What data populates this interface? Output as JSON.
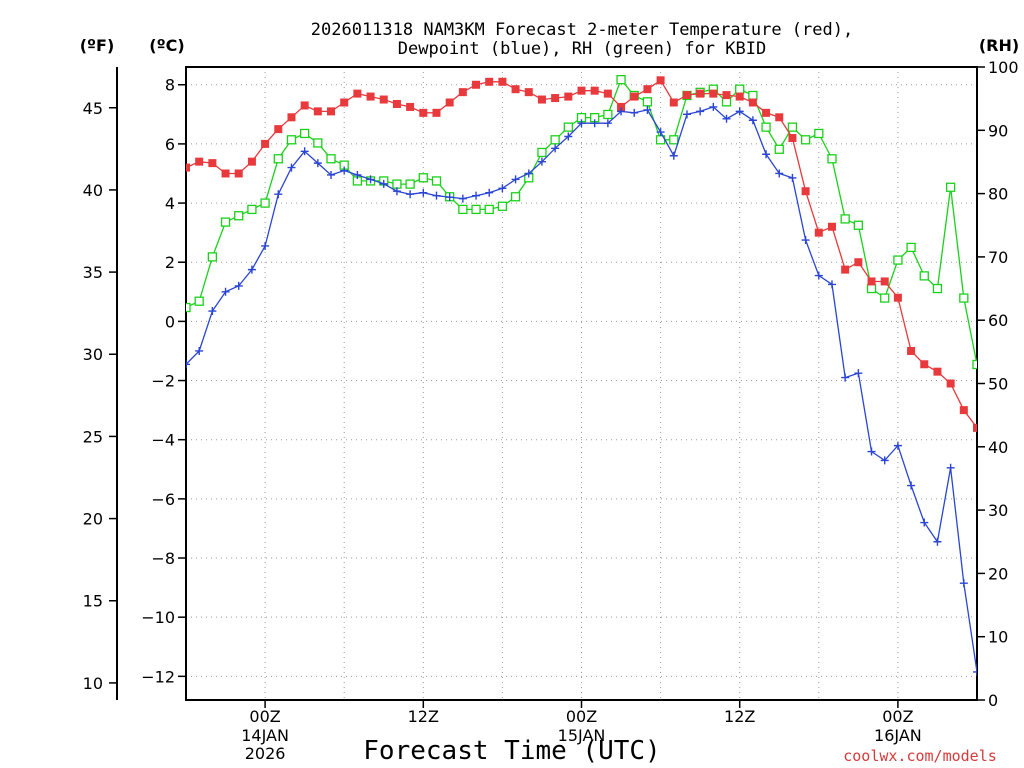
{
  "chart_data": {
    "type": "line",
    "title_line1": "2026011318 NAM3KM Forecast 2-meter Temperature (red),",
    "title_line2": "Dewpoint (blue), RH (green) for KBID",
    "xlabel": "Forecast Time (UTC)",
    "credit": "coolwx.com/models",
    "units": {
      "fahrenheit": "(ºF)",
      "celsius": "(ºC)",
      "rh": "(RH)"
    },
    "x_ticks": [
      {
        "hour": 6,
        "label": "00Z",
        "date": "14JAN",
        "year": "2026"
      },
      {
        "hour": 18,
        "label": "12Z",
        "date": "",
        "year": ""
      },
      {
        "hour": 30,
        "label": "00Z",
        "date": "15JAN",
        "year": ""
      },
      {
        "hour": 42,
        "label": "12Z",
        "date": "",
        "year": ""
      },
      {
        "hour": 54,
        "label": "00Z",
        "date": "16JAN",
        "year": ""
      }
    ],
    "x_grid_hours": [
      0,
      6,
      12,
      18,
      24,
      30,
      36,
      42,
      48,
      54,
      60
    ],
    "xlim": [
      0,
      60
    ],
    "celsius_ticks": [
      8,
      6,
      4,
      2,
      0,
      -2,
      -4,
      -6,
      -8,
      -10,
      -12
    ],
    "celsius_labels": [
      "8",
      "6",
      "4",
      "2",
      "0",
      "−2",
      "−4",
      "−6",
      "−8",
      "−10",
      "−12"
    ],
    "ylim_celsius": [
      -12.8,
      8.6
    ],
    "fahrenheit_ticks": [
      45,
      40,
      35,
      30,
      25,
      20,
      15,
      10
    ],
    "rh_ticks": [
      100,
      90,
      80,
      70,
      60,
      50,
      40,
      30,
      20,
      10,
      0
    ],
    "ylim_rh": [
      0,
      100
    ],
    "series": [
      {
        "name": "Temperature",
        "unit": "C",
        "color": "#e8393c",
        "marker": "filled-square",
        "values": [
          5.2,
          5.4,
          5.35,
          5.0,
          5.0,
          5.4,
          6.0,
          6.5,
          6.9,
          7.3,
          7.1,
          7.1,
          7.4,
          7.7,
          7.6,
          7.5,
          7.35,
          7.25,
          7.05,
          7.05,
          7.4,
          7.75,
          8.0,
          8.1,
          8.1,
          7.85,
          7.75,
          7.5,
          7.55,
          7.6,
          7.8,
          7.8,
          7.7,
          7.25,
          7.6,
          7.85,
          8.15,
          7.4,
          7.65,
          7.7,
          7.7,
          7.65,
          7.6,
          7.4,
          7.05,
          6.9,
          6.2,
          4.4,
          3.0,
          3.2,
          1.75,
          2.0,
          1.35,
          1.35,
          0.8,
          -1.0,
          -1.45,
          -1.7,
          -2.1,
          -3.0,
          -3.6
        ]
      },
      {
        "name": "Dewpoint",
        "unit": "C",
        "color": "#2a45d4",
        "marker": "plus",
        "values": [
          -1.45,
          -1.0,
          0.35,
          1.0,
          1.2,
          1.75,
          2.55,
          4.3,
          5.2,
          5.75,
          5.35,
          4.95,
          5.1,
          4.95,
          4.8,
          4.65,
          4.4,
          4.3,
          4.35,
          4.25,
          4.2,
          4.15,
          4.25,
          4.35,
          4.5,
          4.8,
          5.0,
          5.4,
          5.85,
          6.25,
          6.7,
          6.7,
          6.7,
          7.1,
          7.05,
          7.15,
          6.4,
          5.6,
          7.0,
          7.1,
          7.25,
          6.85,
          7.1,
          6.8,
          5.65,
          5.0,
          4.85,
          2.75,
          1.55,
          1.25,
          -1.9,
          -1.75,
          -4.4,
          -4.7,
          -4.2,
          -5.55,
          -6.8,
          -7.45,
          -4.95,
          -8.85,
          -11.85
        ]
      },
      {
        "name": "RH",
        "unit": "%",
        "color": "#1ad11a",
        "marker": "open-square",
        "values": [
          62,
          63,
          70,
          75.5,
          76.5,
          77.5,
          78.5,
          85.5,
          88.5,
          89.5,
          88,
          85.5,
          84.5,
          82,
          82,
          82,
          81.5,
          81.5,
          82.5,
          82,
          79.5,
          77.5,
          77.5,
          77.5,
          78,
          79.5,
          82.5,
          86.5,
          88.5,
          90.5,
          92,
          92,
          92.5,
          98,
          95.5,
          94.5,
          88.5,
          88.5,
          95.5,
          96,
          96.5,
          94.5,
          96.5,
          95.5,
          90.5,
          87,
          90.5,
          88.5,
          89.5,
          85.5,
          76,
          75,
          65,
          63.5,
          69.5,
          71.5,
          67,
          65,
          81,
          63.5,
          53
        ]
      }
    ]
  }
}
